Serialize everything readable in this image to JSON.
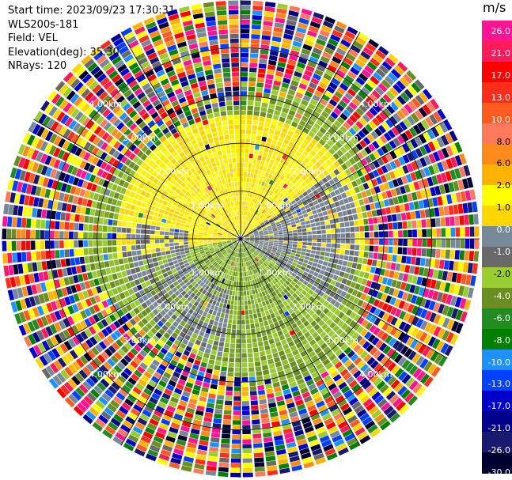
{
  "header": {
    "start_time": "Start time: 2023/09/23 17:30:31",
    "instrument": "WLS200s-181",
    "field": "Field: VEL",
    "elevation": "Elevation(deg): 35.30",
    "nrays": "NRays: 120"
  },
  "chart_data": {
    "type": "ppi",
    "field": "VEL",
    "units": "m/s",
    "elevation_deg": 35.3,
    "n_rays": 120,
    "range_rings_km": [
      1,
      2,
      3,
      4
    ],
    "range_ring_labels": [
      "1.00km",
      "2.00km",
      "3.00km",
      "4.00km"
    ],
    "max_range_km": 5.0,
    "spokes_deg": [
      0,
      30,
      60,
      90,
      120,
      150,
      180,
      210,
      240,
      270,
      300,
      330
    ],
    "colorbar": {
      "unit_label": "m/s",
      "ticks": [
        "26.0",
        "21.0",
        "17.0",
        "13.0",
        "10.0",
        "8.0",
        "6.0",
        "2.0",
        "1.0",
        "0.0",
        "-1.0",
        "-2.0",
        "-4.0",
        "-6.0",
        "-8.0",
        "-10.0",
        "-13.0",
        "-17.0",
        "-21.0",
        "-26.0",
        "-30.0"
      ],
      "colors": [
        "#ff1493",
        "#ff1a5c",
        "#ff0000",
        "#ff2d1a",
        "#ff5a1f",
        "#ff7a5a",
        "#ff8c1a",
        "#ffb300",
        "#ffff00",
        "#ffd700",
        "#778899",
        "#696969",
        "#9acd32",
        "#6b8e23",
        "#228b22",
        "#008000",
        "#1e90ff",
        "#0040ff",
        "#0000cd",
        "#00008b",
        "#191970",
        "#000030"
      ]
    },
    "regions": [
      {
        "name": "positive",
        "range_km": [
          0.2,
          2.6
        ],
        "azimuth_deg": [
          280,
          80
        ],
        "value": 2.0
      },
      {
        "name": "near-zero",
        "range_km": [
          0.0,
          2.6
        ],
        "azimuth_deg": [
          60,
          130
        ],
        "value": 0.0
      },
      {
        "name": "negative",
        "range_km": [
          0.3,
          3.2
        ],
        "azimuth_deg": [
          110,
          280
        ],
        "value": -2.0
      },
      {
        "name": "noise",
        "range_km": [
          3.2,
          5.0
        ],
        "azimuth_deg": [
          0,
          360
        ],
        "value": null
      }
    ]
  }
}
